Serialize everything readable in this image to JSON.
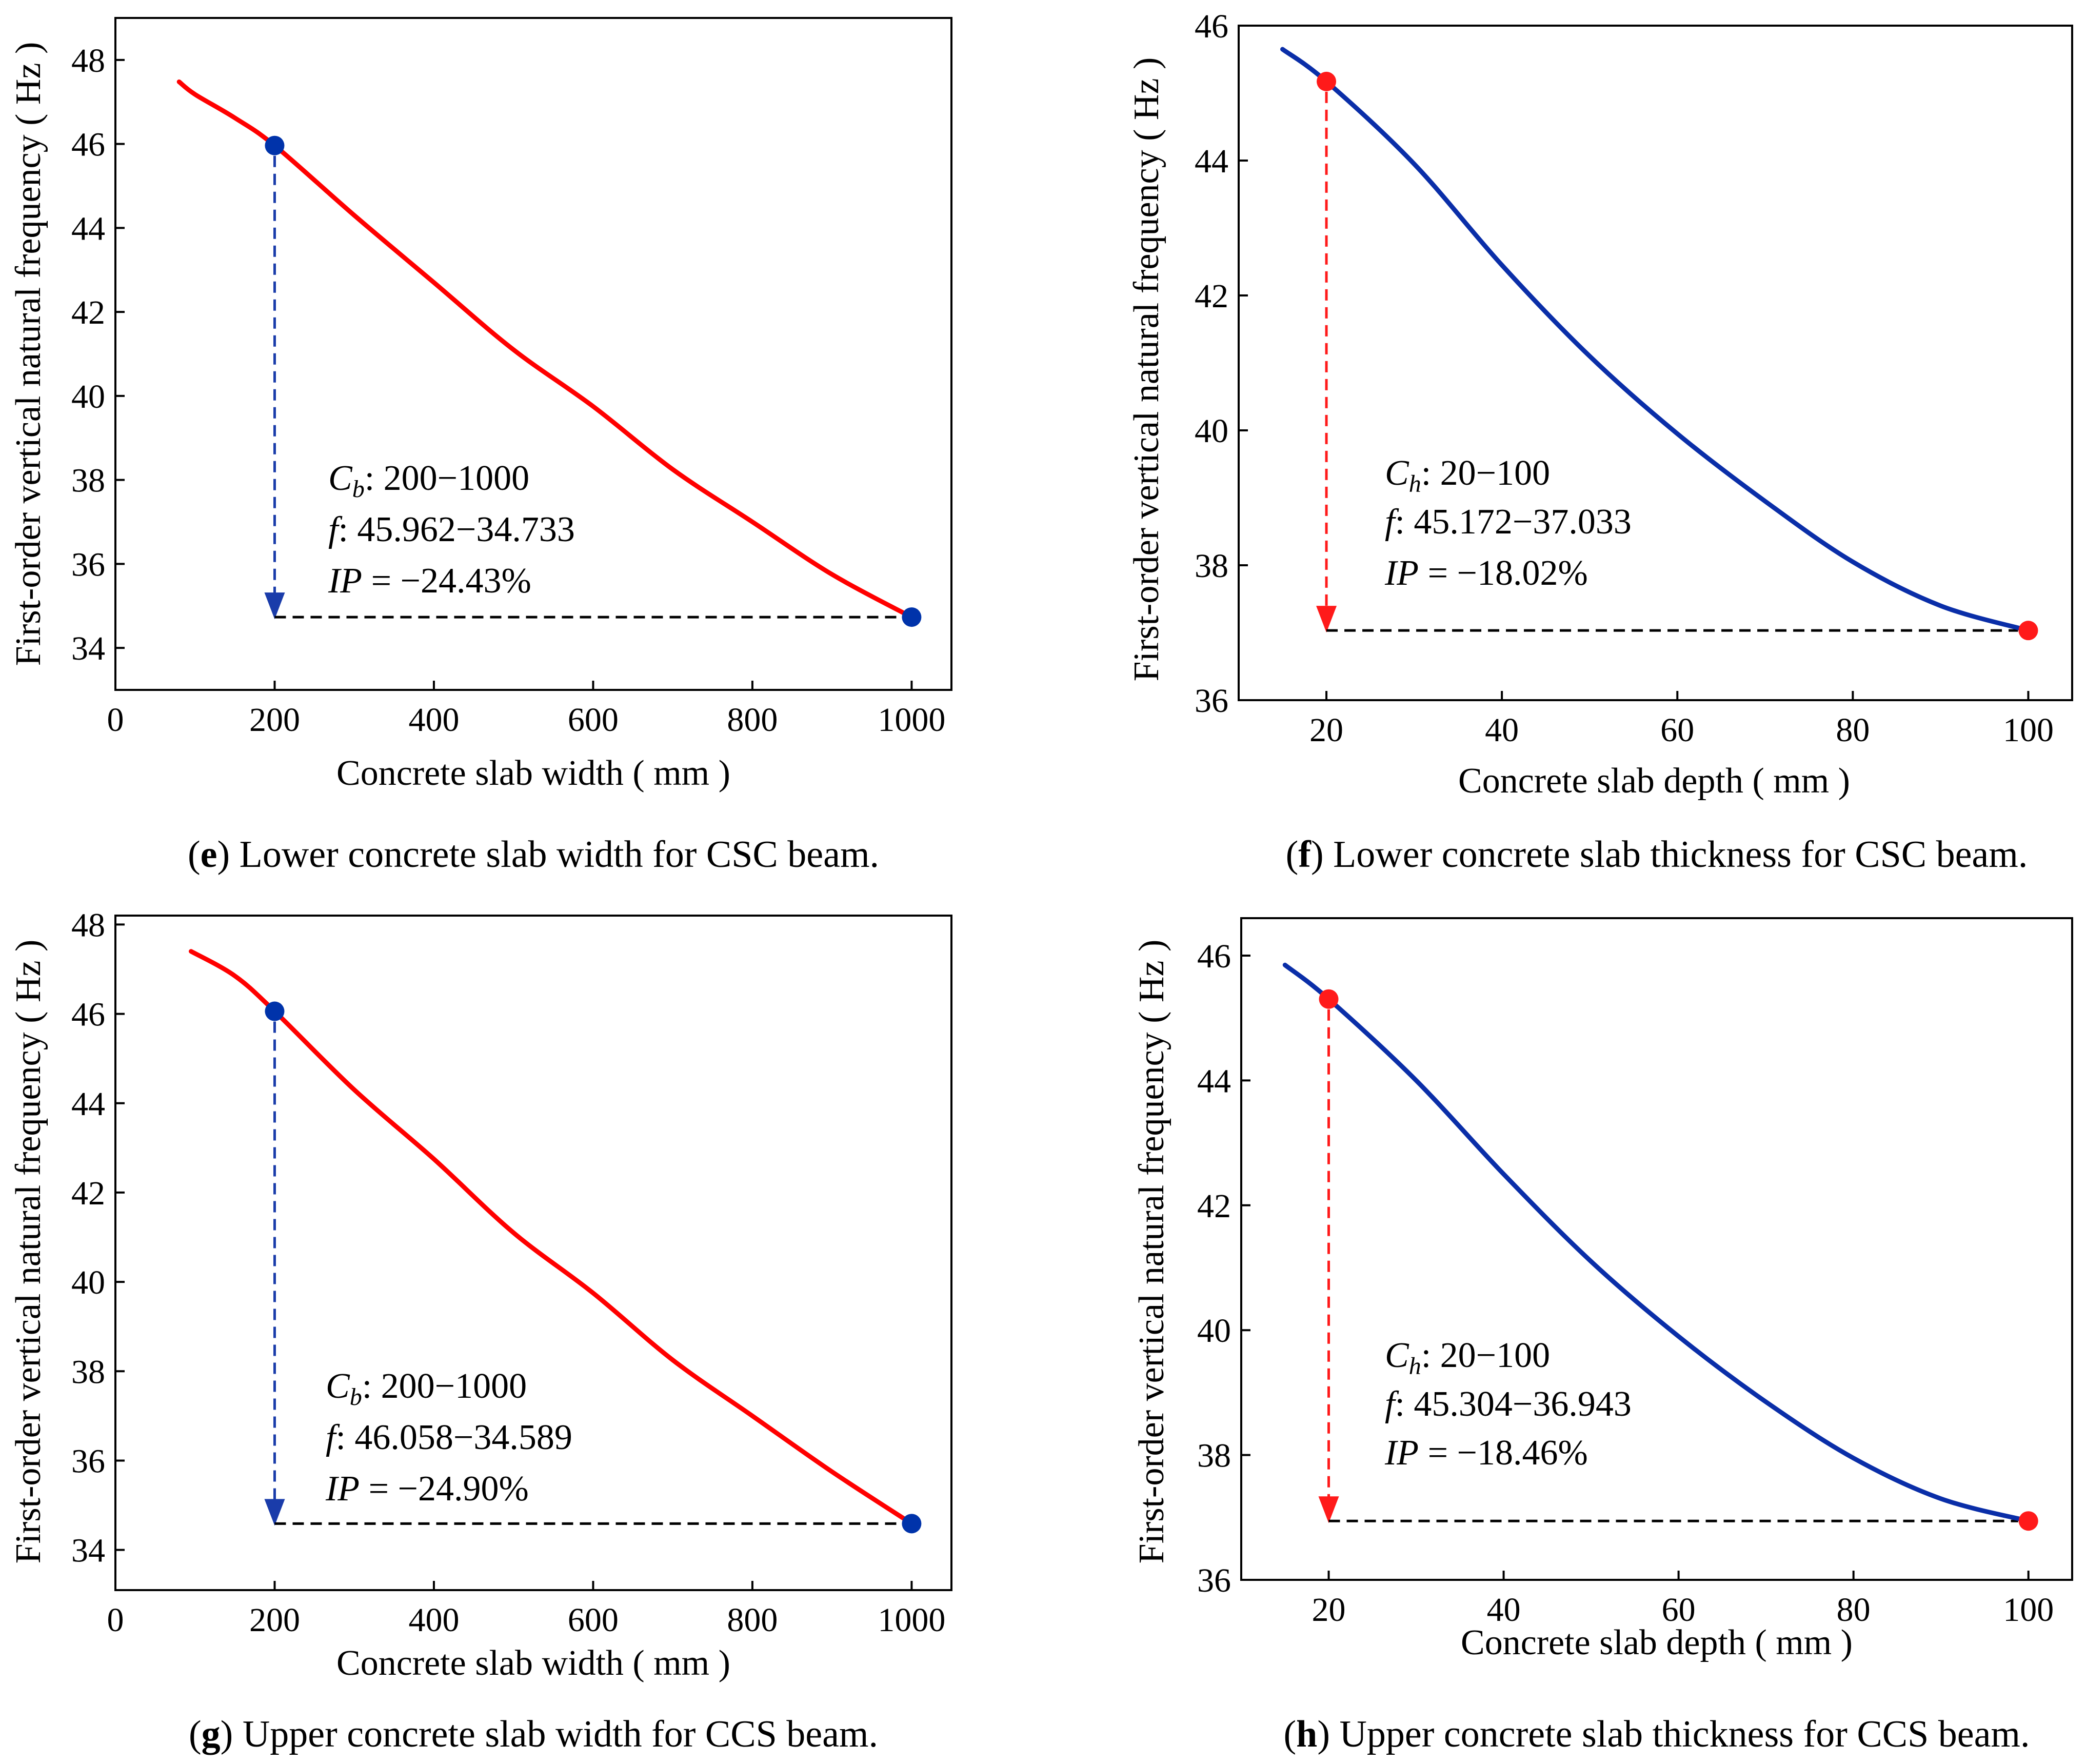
{
  "chart_data": [
    {
      "id": "e",
      "type": "line",
      "caption": {
        "letter": "e",
        "text": "Lower concrete slab width for CSC beam."
      },
      "xlabel": "Concrete slab width ( mm )",
      "ylabel": "First-order vertical natural frequency ( Hz )",
      "xlim": [
        0,
        1050
      ],
      "ylim": [
        33,
        49
      ],
      "xticks": [
        0,
        200,
        400,
        600,
        800,
        1000
      ],
      "yticks": [
        34,
        36,
        38,
        40,
        42,
        44,
        46,
        48
      ],
      "line_color": "#ff0000",
      "marker_color": "#0033aa",
      "arrow_color": "#1a3caa",
      "series": [
        {
          "name": "frequency",
          "x": [
            80,
            100,
            150,
            200,
            300,
            400,
            500,
            600,
            700,
            800,
            900,
            1000
          ],
          "y": [
            47.48,
            47.18,
            46.62,
            45.962,
            44.3,
            42.7,
            41.1,
            39.75,
            38.25,
            37.0,
            35.75,
            34.733
          ]
        }
      ],
      "highlight": {
        "x_start": 200,
        "y_start": 45.962,
        "x_end": 1000,
        "y_end": 34.733
      },
      "annotation": {
        "line1_var": "C",
        "line1_sub": "b",
        "line1_text": ": 200−1000",
        "line2_var": "f",
        "line2_text": ": 45.962−34.733",
        "line3_var": "IP",
        "line3_text": " = −24.43%"
      }
    },
    {
      "id": "f",
      "type": "line",
      "caption": {
        "letter": "f",
        "text": "Lower concrete slab thickness for CSC beam."
      },
      "xlabel": "Concrete slab depth ( mm )",
      "ylabel": "First-order vertical natural frequency ( Hz )",
      "xlim": [
        10,
        105
      ],
      "ylim": [
        36,
        46
      ],
      "xticks": [
        20,
        40,
        60,
        80,
        100
      ],
      "yticks": [
        36,
        38,
        40,
        42,
        44,
        46
      ],
      "line_color": "#0a2ea8",
      "marker_color": "#ff1a1a",
      "arrow_color": "#ff1a1a",
      "series": [
        {
          "name": "frequency",
          "x": [
            15,
            20,
            30,
            40,
            50,
            60,
            70,
            80,
            90,
            100
          ],
          "y": [
            45.65,
            45.172,
            43.95,
            42.45,
            41.1,
            39.95,
            38.95,
            38.05,
            37.4,
            37.033
          ]
        }
      ],
      "highlight": {
        "x_start": 20,
        "y_start": 45.172,
        "x_end": 100,
        "y_end": 37.033
      },
      "annotation": {
        "line1_var": "C",
        "line1_sub": "h",
        "line1_text": ": 20−100",
        "line2_var": "f",
        "line2_text": ": 45.172−37.033",
        "line3_var": "IP",
        "line3_text": " = −18.02%"
      }
    },
    {
      "id": "g",
      "type": "line",
      "caption": {
        "letter": "g",
        "text": "Upper concrete slab width for CCS beam."
      },
      "xlabel": "Concrete slab width ( mm )",
      "ylabel": "First-order vertical natural frequency ( Hz )",
      "xlim": [
        0,
        1050
      ],
      "ylim": [
        33.1,
        48.2
      ],
      "xticks": [
        0,
        200,
        400,
        600,
        800,
        1000
      ],
      "yticks": [
        34,
        36,
        38,
        40,
        42,
        44,
        46,
        48
      ],
      "line_color": "#ff0000",
      "marker_color": "#0033aa",
      "arrow_color": "#1a3caa",
      "series": [
        {
          "name": "frequency",
          "x": [
            95,
            150,
            200,
            300,
            400,
            500,
            600,
            700,
            800,
            900,
            1000
          ],
          "y": [
            47.4,
            46.85,
            46.058,
            44.3,
            42.75,
            41.1,
            39.75,
            38.25,
            37.0,
            35.75,
            34.589
          ]
        }
      ],
      "highlight": {
        "x_start": 200,
        "y_start": 46.058,
        "x_end": 1000,
        "y_end": 34.589
      },
      "annotation": {
        "line1_var": "C",
        "line1_sub": "b",
        "line1_text": ": 200−1000",
        "line2_var": "f",
        "line2_text": ": 46.058−34.589",
        "line3_var": "IP",
        "line3_text": " = −24.90%"
      }
    },
    {
      "id": "h",
      "type": "line",
      "caption": {
        "letter": "h",
        "text": "Upper concrete slab thickness for CCS beam."
      },
      "xlabel": "Concrete slab depth ( mm )",
      "ylabel": "First-order vertical natural frequency ( Hz )",
      "xlim": [
        10,
        105
      ],
      "ylim": [
        36,
        46.6
      ],
      "xticks": [
        20,
        40,
        60,
        80,
        100
      ],
      "yticks": [
        36,
        38,
        40,
        42,
        44,
        46
      ],
      "line_color": "#0a2ea8",
      "marker_color": "#ff1a1a",
      "arrow_color": "#ff1a1a",
      "series": [
        {
          "name": "frequency",
          "x": [
            15,
            20,
            30,
            40,
            50,
            60,
            70,
            80,
            90,
            100
          ],
          "y": [
            45.85,
            45.304,
            44.0,
            42.5,
            41.1,
            39.9,
            38.85,
            37.95,
            37.3,
            36.943
          ]
        }
      ],
      "highlight": {
        "x_start": 20,
        "y_start": 45.304,
        "x_end": 100,
        "y_end": 36.943
      },
      "annotation": {
        "line1_var": "C",
        "line1_sub": "h",
        "line1_text": ": 20−100",
        "line2_var": "f",
        "line2_text": ": 45.304−36.943",
        "line3_var": "IP",
        "line3_text": " = −18.46%"
      }
    }
  ]
}
